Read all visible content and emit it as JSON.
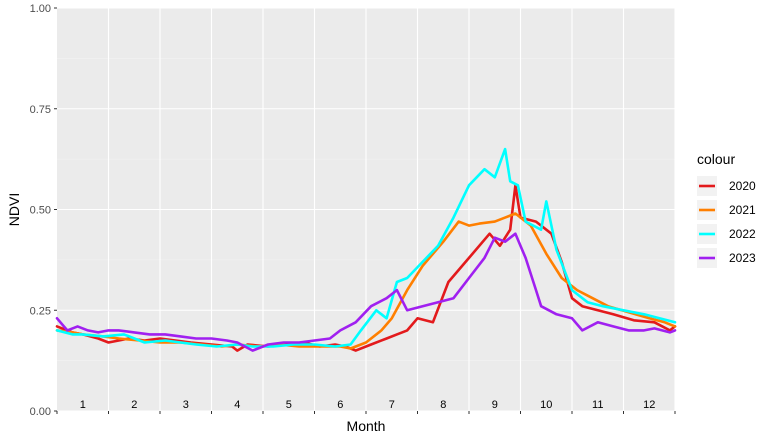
{
  "chart_data": {
    "type": "line",
    "xlabel": "Month",
    "ylabel": "NDVI",
    "ylim": [
      0,
      1
    ],
    "xlim": [
      0.5,
      12.5
    ],
    "y_ticks": [
      "0.00",
      "0.25",
      "0.50",
      "0.75",
      "1.00"
    ],
    "month_labels": [
      "1",
      "2",
      "3",
      "4",
      "5",
      "6",
      "7",
      "8",
      "9",
      "10",
      "11",
      "12"
    ],
    "grid": true,
    "legend": {
      "title": "colour",
      "placement": "right"
    },
    "series": [
      {
        "name": "2020",
        "color": "#e31a1c",
        "x": [
          0.5,
          0.8,
          1.0,
          1.3,
          1.5,
          1.9,
          2.2,
          2.5,
          2.8,
          3.1,
          3.5,
          3.9,
          4.0,
          4.2,
          4.6,
          5.0,
          5.3,
          5.6,
          5.9,
          6.1,
          6.3,
          6.6,
          6.9,
          7.1,
          7.3,
          7.5,
          7.8,
          8.1,
          8.5,
          8.9,
          9.1,
          9.3,
          9.4,
          9.5,
          9.8,
          10.1,
          10.3,
          10.5,
          10.7,
          11.0,
          11.3,
          11.7,
          12.1,
          12.4,
          12.5
        ],
        "y": [
          0.21,
          0.195,
          0.19,
          0.18,
          0.17,
          0.18,
          0.175,
          0.18,
          0.175,
          0.17,
          0.165,
          0.16,
          0.15,
          0.165,
          0.16,
          0.165,
          0.17,
          0.16,
          0.165,
          0.16,
          0.15,
          0.165,
          0.18,
          0.19,
          0.2,
          0.23,
          0.22,
          0.32,
          0.38,
          0.44,
          0.41,
          0.45,
          0.56,
          0.48,
          0.47,
          0.44,
          0.37,
          0.28,
          0.26,
          0.25,
          0.24,
          0.225,
          0.22,
          0.2,
          0.21
        ]
      },
      {
        "name": "2021",
        "color": "#ff7f00",
        "x": [
          0.5,
          0.8,
          1.0,
          1.4,
          1.7,
          2.1,
          2.5,
          2.9,
          3.3,
          3.7,
          4.0,
          4.4,
          4.8,
          5.2,
          5.6,
          6.0,
          6.2,
          6.5,
          6.8,
          7.0,
          7.3,
          7.6,
          8.0,
          8.3,
          8.5,
          8.7,
          9.0,
          9.2,
          9.4,
          9.7,
          10.0,
          10.3,
          10.6,
          10.9,
          11.2,
          11.6,
          12.0,
          12.3,
          12.5
        ],
        "y": [
          0.2,
          0.195,
          0.19,
          0.185,
          0.18,
          0.175,
          0.17,
          0.17,
          0.165,
          0.16,
          0.165,
          0.16,
          0.165,
          0.16,
          0.16,
          0.16,
          0.155,
          0.17,
          0.2,
          0.23,
          0.3,
          0.36,
          0.42,
          0.47,
          0.46,
          0.465,
          0.47,
          0.48,
          0.49,
          0.46,
          0.39,
          0.33,
          0.3,
          0.28,
          0.26,
          0.245,
          0.23,
          0.22,
          0.21
        ]
      },
      {
        "name": "2022",
        "color": "#00ffff",
        "x": [
          0.5,
          0.8,
          1.0,
          1.4,
          1.8,
          2.2,
          2.6,
          2.9,
          3.2,
          3.6,
          4.0,
          4.3,
          4.7,
          5.1,
          5.5,
          5.9,
          6.2,
          6.4,
          6.7,
          6.9,
          7.1,
          7.3,
          7.6,
          7.9,
          8.2,
          8.5,
          8.8,
          9.0,
          9.2,
          9.3,
          9.45,
          9.6,
          9.9,
          10.0,
          10.2,
          10.5,
          10.8,
          11.1,
          11.5,
          11.9,
          12.2,
          12.5
        ],
        "y": [
          0.2,
          0.19,
          0.19,
          0.185,
          0.19,
          0.17,
          0.175,
          0.17,
          0.165,
          0.16,
          0.165,
          0.16,
          0.16,
          0.165,
          0.165,
          0.16,
          0.165,
          0.2,
          0.25,
          0.23,
          0.32,
          0.33,
          0.37,
          0.41,
          0.48,
          0.56,
          0.6,
          0.58,
          0.65,
          0.57,
          0.56,
          0.47,
          0.45,
          0.52,
          0.4,
          0.3,
          0.27,
          0.26,
          0.25,
          0.24,
          0.23,
          0.22
        ]
      },
      {
        "name": "2023",
        "color": "#a020f0",
        "x": [
          0.5,
          0.7,
          0.9,
          1.1,
          1.3,
          1.5,
          1.7,
          2.0,
          2.3,
          2.6,
          2.9,
          3.2,
          3.5,
          3.8,
          4.0,
          4.3,
          4.6,
          4.9,
          5.2,
          5.5,
          5.8,
          6.0,
          6.3,
          6.6,
          6.9,
          7.1,
          7.3,
          7.6,
          7.9,
          8.2,
          8.5,
          8.8,
          9.0,
          9.2,
          9.4,
          9.6,
          9.8,
          9.9,
          10.2,
          10.5,
          10.7,
          11.0,
          11.3,
          11.6,
          11.9,
          12.1,
          12.4,
          12.5
        ],
        "y": [
          0.23,
          0.2,
          0.21,
          0.2,
          0.195,
          0.2,
          0.2,
          0.195,
          0.19,
          0.19,
          0.185,
          0.18,
          0.18,
          0.175,
          0.17,
          0.15,
          0.165,
          0.17,
          0.17,
          0.175,
          0.18,
          0.2,
          0.22,
          0.26,
          0.28,
          0.3,
          0.25,
          0.26,
          0.27,
          0.28,
          0.33,
          0.38,
          0.43,
          0.42,
          0.44,
          0.38,
          0.3,
          0.26,
          0.24,
          0.23,
          0.2,
          0.22,
          0.21,
          0.2,
          0.2,
          0.205,
          0.195,
          0.2
        ]
      }
    ]
  }
}
